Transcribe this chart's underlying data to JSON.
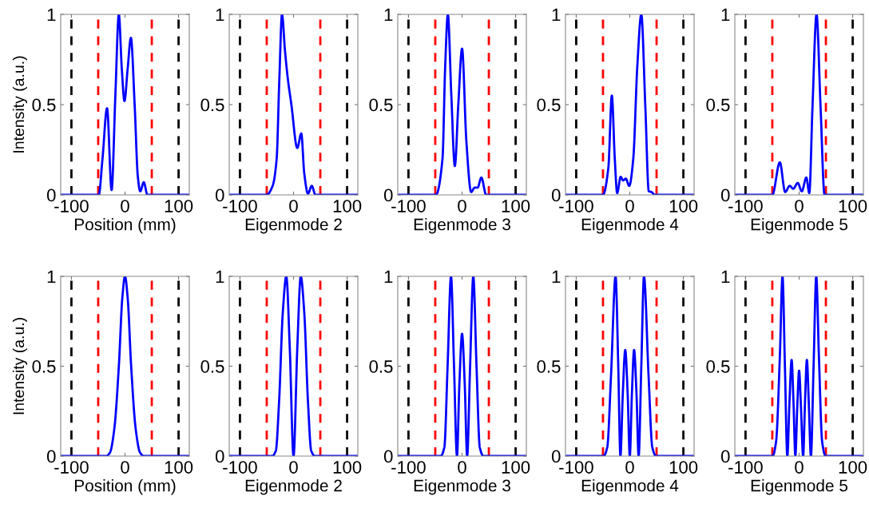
{
  "chart_data": [
    {
      "type": "line",
      "xlabel": "Position (mm)",
      "ylabel": "Intensity (a.u.)",
      "x": [
        -120,
        -49,
        -42,
        -33.5,
        -25,
        -18,
        -11.5,
        -6,
        -1,
        5,
        11,
        18,
        24,
        28.5,
        35,
        42,
        120
      ],
      "series": [
        {
          "color": "#0000ff",
          "values": [
            0,
            0,
            0.2,
            0.48,
            0.027,
            0.55,
            1.0,
            0.7,
            0.52,
            0.7,
            0.87,
            0.5,
            0.1,
            0.02,
            0.07,
            0,
            0
          ]
        }
      ],
      "xlim": [
        -120,
        120
      ],
      "xticks": [
        -100,
        0,
        100
      ],
      "ylim": [
        0,
        1
      ],
      "yticks": [
        0,
        0.5,
        1
      ],
      "grid": false,
      "line_style": "solid",
      "marker": "none",
      "ref_lines": [
        {
          "axis": "x",
          "value": -100,
          "color": "#000000",
          "line_style": "dashed"
        },
        {
          "axis": "x",
          "value": -50,
          "color": "#ff0000",
          "line_style": "dashed"
        },
        {
          "axis": "x",
          "value": 50,
          "color": "#ff0000",
          "line_style": "dashed"
        },
        {
          "axis": "x",
          "value": 100,
          "color": "#000000",
          "line_style": "dashed"
        }
      ]
    },
    {
      "type": "line",
      "xlabel": "Eigenmode 2",
      "x": [
        -120,
        -50.5,
        -39,
        -31.5,
        -26.5,
        -21.5,
        -16,
        -10.5,
        -4,
        7,
        14.5,
        20,
        27,
        34,
        41,
        120
      ],
      "series": [
        {
          "color": "#0000ff",
          "values": [
            0,
            0,
            0.05,
            0.2,
            0.64,
            1.0,
            0.8,
            0.64,
            0.5,
            0.26,
            0.34,
            0.12,
            0.007,
            0.05,
            0,
            0
          ]
        }
      ],
      "xlim": [
        -120,
        120
      ],
      "xticks": [
        -100,
        0,
        100
      ],
      "ylim": [
        0,
        1
      ],
      "yticks": [
        0,
        0.5,
        1
      ],
      "grid": false,
      "line_style": "solid",
      "marker": "none",
      "ref_lines": [
        {
          "axis": "x",
          "value": -100,
          "color": "#000000",
          "line_style": "dashed"
        },
        {
          "axis": "x",
          "value": -50,
          "color": "#ff0000",
          "line_style": "dashed"
        },
        {
          "axis": "x",
          "value": 50,
          "color": "#ff0000",
          "line_style": "dashed"
        },
        {
          "axis": "x",
          "value": 100,
          "color": "#000000",
          "line_style": "dashed"
        }
      ]
    },
    {
      "type": "line",
      "xlabel": "Eigenmode 3",
      "x": [
        -120,
        -49,
        -36.5,
        -31.5,
        -26.5,
        -20,
        -13.5,
        -7,
        0,
        8,
        17,
        23.5,
        29,
        36,
        45,
        120
      ],
      "series": [
        {
          "color": "#0000ff",
          "values": [
            0,
            0,
            0.2,
            0.71,
            1.0,
            0.55,
            0.16,
            0.5,
            0.81,
            0.3,
            0.016,
            0.04,
            0.04,
            0.096,
            0,
            0
          ]
        }
      ],
      "xlim": [
        -120,
        120
      ],
      "xticks": [
        -100,
        0,
        100
      ],
      "ylim": [
        0,
        1
      ],
      "yticks": [
        0,
        0.5,
        1
      ],
      "grid": false,
      "line_style": "solid",
      "marker": "none",
      "ref_lines": [
        {
          "axis": "x",
          "value": -100,
          "color": "#000000",
          "line_style": "dashed"
        },
        {
          "axis": "x",
          "value": -50,
          "color": "#ff0000",
          "line_style": "dashed"
        },
        {
          "axis": "x",
          "value": 50,
          "color": "#ff0000",
          "line_style": "dashed"
        },
        {
          "axis": "x",
          "value": 100,
          "color": "#000000",
          "line_style": "dashed"
        }
      ]
    },
    {
      "type": "line",
      "xlabel": "Eigenmode 4",
      "x": [
        -120,
        -50,
        -40,
        -33.5,
        -28,
        -23.5,
        -17,
        -12.5,
        -7.5,
        -1,
        6.5,
        14,
        21.5,
        29,
        35.5,
        40.5,
        46.5,
        120
      ],
      "series": [
        {
          "color": "#0000ff",
          "values": [
            0,
            0,
            0.15,
            0.55,
            0.2,
            0.01,
            0.1,
            0.08,
            0.09,
            0.05,
            0.2,
            0.71,
            1.0,
            0.49,
            0.02,
            0.016,
            0,
            0
          ]
        }
      ],
      "xlim": [
        -120,
        120
      ],
      "xticks": [
        -100,
        0,
        100
      ],
      "ylim": [
        0,
        1
      ],
      "yticks": [
        0,
        0.5,
        1
      ],
      "grid": false,
      "line_style": "solid",
      "marker": "none",
      "ref_lines": [
        {
          "axis": "x",
          "value": -100,
          "color": "#000000",
          "line_style": "dashed"
        },
        {
          "axis": "x",
          "value": -50,
          "color": "#ff0000",
          "line_style": "dashed"
        },
        {
          "axis": "x",
          "value": 50,
          "color": "#ff0000",
          "line_style": "dashed"
        },
        {
          "axis": "x",
          "value": 100,
          "color": "#000000",
          "line_style": "dashed"
        }
      ]
    },
    {
      "type": "line",
      "xlabel": "Eigenmode 5",
      "x": [
        -120,
        -50,
        -36,
        -26,
        -17.5,
        -11,
        -2.5,
        5,
        13.5,
        19,
        25,
        32.5,
        40,
        47.5,
        120
      ],
      "series": [
        {
          "color": "#0000ff",
          "values": [
            0,
            0,
            0.18,
            0.016,
            0.05,
            0.034,
            0.066,
            0.02,
            0.096,
            0.01,
            0.49,
            1.0,
            0.49,
            0,
            0
          ]
        }
      ],
      "xlim": [
        -120,
        120
      ],
      "xticks": [
        -100,
        0,
        100
      ],
      "ylim": [
        0,
        1
      ],
      "yticks": [
        0,
        0.5,
        1
      ],
      "grid": false,
      "line_style": "solid",
      "marker": "none",
      "ref_lines": [
        {
          "axis": "x",
          "value": -100,
          "color": "#000000",
          "line_style": "dashed"
        },
        {
          "axis": "x",
          "value": -50,
          "color": "#ff0000",
          "line_style": "dashed"
        },
        {
          "axis": "x",
          "value": 50,
          "color": "#ff0000",
          "line_style": "dashed"
        },
        {
          "axis": "x",
          "value": 100,
          "color": "#000000",
          "line_style": "dashed"
        }
      ]
    },
    {
      "type": "line",
      "xlabel": "Position (mm)",
      "ylabel": "Intensity (a.u.)",
      "x": [
        -120,
        -35,
        -28,
        -20,
        -11.5,
        -5,
        0,
        5,
        11.5,
        20,
        28,
        35,
        120
      ],
      "series": [
        {
          "color": "#0000ff",
          "values": [
            0,
            0,
            0.02,
            0.15,
            0.5,
            0.88,
            1.0,
            0.88,
            0.5,
            0.15,
            0.02,
            0,
            0
          ]
        }
      ],
      "xlim": [
        -120,
        120
      ],
      "xticks": [
        -100,
        0,
        100
      ],
      "ylim": [
        0,
        1
      ],
      "yticks": [
        0,
        0.5,
        1
      ],
      "grid": false,
      "line_style": "solid",
      "marker": "none",
      "ref_lines": [
        {
          "axis": "x",
          "value": -100,
          "color": "#000000",
          "line_style": "dashed"
        },
        {
          "axis": "x",
          "value": -50,
          "color": "#ff0000",
          "line_style": "dashed"
        },
        {
          "axis": "x",
          "value": 50,
          "color": "#ff0000",
          "line_style": "dashed"
        },
        {
          "axis": "x",
          "value": 100,
          "color": "#000000",
          "line_style": "dashed"
        }
      ]
    },
    {
      "type": "line",
      "xlabel": "Eigenmode 2",
      "x": [
        -120,
        -40,
        -33,
        -27,
        -20,
        -13.5,
        -7,
        0,
        7,
        13.5,
        20,
        27,
        33,
        40,
        120
      ],
      "series": [
        {
          "color": "#0000ff",
          "values": [
            0,
            0,
            0.03,
            0.3,
            0.8,
            1.0,
            0.6,
            0,
            0.6,
            1.0,
            0.8,
            0.3,
            0.03,
            0,
            0
          ]
        }
      ],
      "xlim": [
        -120,
        120
      ],
      "xticks": [
        -100,
        0,
        100
      ],
      "ylim": [
        0,
        1
      ],
      "yticks": [
        0,
        0.5,
        1
      ],
      "grid": false,
      "line_style": "solid",
      "marker": "none",
      "ref_lines": [
        {
          "axis": "x",
          "value": -100,
          "color": "#000000",
          "line_style": "dashed"
        },
        {
          "axis": "x",
          "value": -50,
          "color": "#ff0000",
          "line_style": "dashed"
        },
        {
          "axis": "x",
          "value": 50,
          "color": "#ff0000",
          "line_style": "dashed"
        },
        {
          "axis": "x",
          "value": 100,
          "color": "#000000",
          "line_style": "dashed"
        }
      ]
    },
    {
      "type": "line",
      "xlabel": "Eigenmode 3",
      "x": [
        -120,
        -40,
        -33,
        -27,
        -20.6,
        -15,
        -9.5,
        -5,
        0,
        5,
        9.5,
        15,
        21,
        27,
        33,
        40,
        120
      ],
      "series": [
        {
          "color": "#0000ff",
          "values": [
            0,
            0,
            0.05,
            0.5,
            1.0,
            0.5,
            0,
            0.4,
            0.68,
            0.4,
            0,
            0.5,
            1.0,
            0.5,
            0.05,
            0,
            0
          ]
        }
      ],
      "xlim": [
        -120,
        120
      ],
      "xticks": [
        -100,
        0,
        100
      ],
      "ylim": [
        0,
        1
      ],
      "yticks": [
        0,
        0.5,
        1
      ],
      "grid": false,
      "line_style": "solid",
      "marker": "none",
      "ref_lines": [
        {
          "axis": "x",
          "value": -100,
          "color": "#000000",
          "line_style": "dashed"
        },
        {
          "axis": "x",
          "value": -50,
          "color": "#ff0000",
          "line_style": "dashed"
        },
        {
          "axis": "x",
          "value": 50,
          "color": "#ff0000",
          "line_style": "dashed"
        },
        {
          "axis": "x",
          "value": 100,
          "color": "#000000",
          "line_style": "dashed"
        }
      ]
    },
    {
      "type": "line",
      "xlabel": "Eigenmode 4",
      "x": [
        -120,
        -49,
        -42,
        -35,
        -26.5,
        -21.5,
        -17.5,
        -13,
        -8.5,
        -4,
        0,
        4,
        8,
        12.5,
        16.5,
        21.5,
        26.5,
        35,
        42,
        49,
        120
      ],
      "series": [
        {
          "color": "#0000ff",
          "values": [
            0,
            0,
            0.05,
            0.45,
            1.0,
            0.5,
            0,
            0.35,
            0.59,
            0.35,
            0,
            0.35,
            0.59,
            0.35,
            0,
            0.5,
            1.0,
            0.45,
            0.05,
            0,
            0
          ]
        }
      ],
      "xlim": [
        -120,
        120
      ],
      "xticks": [
        -100,
        0,
        100
      ],
      "ylim": [
        0,
        1
      ],
      "yticks": [
        0,
        0.5,
        1
      ],
      "grid": false,
      "line_style": "solid",
      "marker": "none",
      "ref_lines": [
        {
          "axis": "x",
          "value": -100,
          "color": "#000000",
          "line_style": "dashed"
        },
        {
          "axis": "x",
          "value": -50,
          "color": "#ff0000",
          "line_style": "dashed"
        },
        {
          "axis": "x",
          "value": 50,
          "color": "#ff0000",
          "line_style": "dashed"
        },
        {
          "axis": "x",
          "value": 100,
          "color": "#000000",
          "line_style": "dashed"
        }
      ]
    },
    {
      "type": "line",
      "xlabel": "Eigenmode 5",
      "x": [
        -120,
        -49.5,
        -43,
        -36,
        -31,
        -26.5,
        -22,
        -18,
        -14,
        -10.5,
        -7,
        -3.5,
        0,
        3.5,
        7.5,
        11,
        14.5,
        18,
        22,
        27,
        32,
        37,
        43,
        49.5,
        120
      ],
      "series": [
        {
          "color": "#0000ff",
          "values": [
            0,
            0,
            0.08,
            0.55,
            1.0,
            0.5,
            0,
            0.3,
            0.535,
            0.3,
            0,
            0.27,
            0.475,
            0.27,
            0,
            0.3,
            0.535,
            0.3,
            0,
            0.5,
            1.0,
            0.55,
            0.08,
            0,
            0
          ]
        }
      ],
      "xlim": [
        -120,
        120
      ],
      "xticks": [
        -100,
        0,
        100
      ],
      "ylim": [
        0,
        1
      ],
      "yticks": [
        0,
        0.5,
        1
      ],
      "grid": false,
      "line_style": "solid",
      "marker": "none",
      "ref_lines": [
        {
          "axis": "x",
          "value": -100,
          "color": "#000000",
          "line_style": "dashed"
        },
        {
          "axis": "x",
          "value": -50,
          "color": "#ff0000",
          "line_style": "dashed"
        },
        {
          "axis": "x",
          "value": 50,
          "color": "#ff0000",
          "line_style": "dashed"
        },
        {
          "axis": "x",
          "value": 100,
          "color": "#000000",
          "line_style": "dashed"
        }
      ]
    }
  ]
}
